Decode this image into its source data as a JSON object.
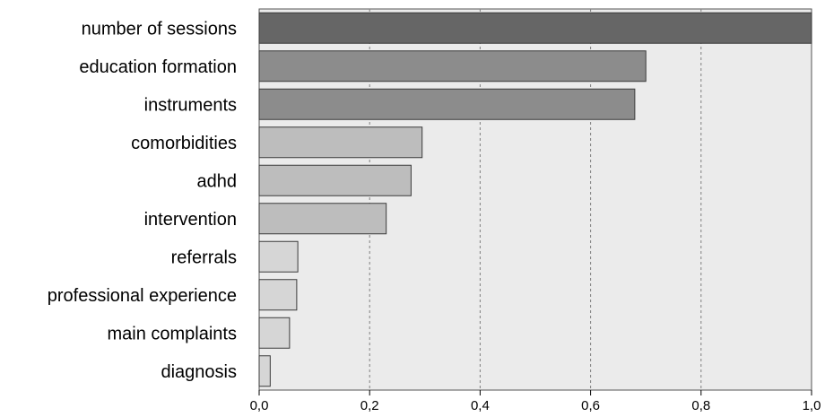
{
  "chart_data": {
    "type": "bar",
    "orientation": "horizontal",
    "categories": [
      "number of sessions",
      "education formation",
      "instruments",
      "comorbidities",
      "adhd",
      "intervention",
      "referrals",
      "professional experience",
      "main complaints",
      "diagnosis"
    ],
    "values": [
      1.0,
      0.7,
      0.68,
      0.295,
      0.275,
      0.23,
      0.07,
      0.068,
      0.055,
      0.02
    ],
    "bar_colors": [
      "#666666",
      "#8c8c8c",
      "#8c8c8c",
      "#bdbdbd",
      "#bdbdbd",
      "#bdbdbd",
      "#d6d6d6",
      "#d6d6d6",
      "#d6d6d6",
      "#d6d6d6"
    ],
    "xlim": [
      0,
      1.0
    ],
    "xticks": [
      0.0,
      0.2,
      0.4,
      0.6,
      0.8,
      1.0
    ],
    "xtick_labels": [
      "0,0",
      "0,2",
      "0,4",
      "0,6",
      "0,8",
      "1,0"
    ],
    "grid": "vertical dotted",
    "plot_background": "#ebebeb",
    "title": "",
    "xlabel": "",
    "ylabel": ""
  }
}
